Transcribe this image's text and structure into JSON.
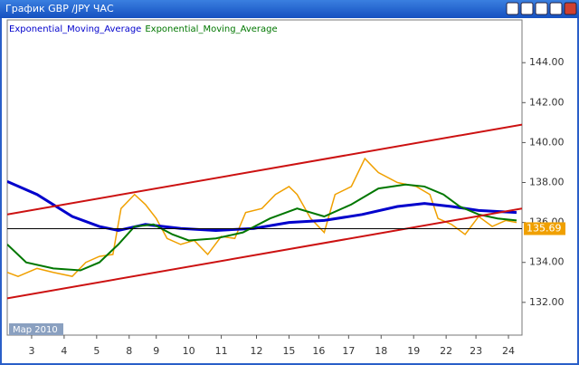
{
  "chart_data": {
    "type": "line",
    "title": "График GBP /JPY ЧАС",
    "date_label": "Мар 2010",
    "xlim": [
      0,
      190
    ],
    "xticks": [
      {
        "value": 9,
        "label": "3"
      },
      {
        "value": 21,
        "label": "4"
      },
      {
        "value": 33,
        "label": "5"
      },
      {
        "value": 45,
        "label": "8"
      },
      {
        "value": 55,
        "label": "9"
      },
      {
        "value": 67,
        "label": "10"
      },
      {
        "value": 79,
        "label": "11"
      },
      {
        "value": 92,
        "label": "12"
      },
      {
        "value": 104,
        "label": "15"
      },
      {
        "value": 115,
        "label": "16"
      },
      {
        "value": 126,
        "label": "17"
      },
      {
        "value": 138,
        "label": "18"
      },
      {
        "value": 150,
        "label": "19"
      },
      {
        "value": 162,
        "label": "22"
      },
      {
        "value": 173,
        "label": "23"
      },
      {
        "value": 185,
        "label": "24"
      }
    ],
    "ylim": [
      130.36,
      146.14
    ],
    "yticks": [
      {
        "value": 132,
        "label": "132.00"
      },
      {
        "value": 134,
        "label": "134.00"
      },
      {
        "value": 136,
        "label": "136.00"
      },
      {
        "value": 138,
        "label": "138.00"
      },
      {
        "value": 140,
        "label": "140.00"
      },
      {
        "value": 142,
        "label": "142.00"
      },
      {
        "value": 144,
        "label": "144.00"
      }
    ],
    "current_price": 135.69,
    "series": [
      {
        "color": "#f0a000",
        "x": [
          0,
          4,
          11,
          17,
          24,
          29,
          34,
          39,
          42,
          47,
          51,
          55,
          59,
          64,
          69,
          74,
          79,
          84,
          88,
          94,
          99,
          104,
          107,
          112,
          117,
          121,
          127,
          132,
          137,
          144,
          151,
          156,
          159,
          164,
          169,
          174,
          179,
          184,
          188
        ],
        "values": [
          133.5,
          133.3,
          133.7,
          133.5,
          133.3,
          134.0,
          134.3,
          134.4,
          136.7,
          137.4,
          136.9,
          136.2,
          135.2,
          134.9,
          135.1,
          134.4,
          135.3,
          135.2,
          136.5,
          136.7,
          137.4,
          137.8,
          137.4,
          136.2,
          135.5,
          137.4,
          137.8,
          139.2,
          138.5,
          138.0,
          137.8,
          137.4,
          136.2,
          135.9,
          135.4,
          136.3,
          135.8,
          136.1,
          136.0
        ]
      },
      {
        "name": "Exponential_Moving_Average",
        "color": "#0000cc",
        "x": [
          0,
          11,
          24,
          34,
          41,
          51,
          64,
          77,
          91,
          104,
          117,
          131,
          144,
          154,
          164,
          174,
          188
        ],
        "values": [
          138.05,
          137.4,
          136.3,
          135.8,
          135.6,
          135.9,
          135.7,
          135.6,
          135.7,
          136.0,
          136.1,
          136.4,
          136.8,
          136.95,
          136.8,
          136.6,
          136.5
        ]
      },
      {
        "name": "Exponential_Moving_Average",
        "color": "#007700",
        "x": [
          0,
          7,
          17,
          27,
          34,
          41,
          47,
          54,
          61,
          67,
          77,
          87,
          97,
          107,
          117,
          127,
          137,
          147,
          154,
          161,
          167,
          174,
          181,
          188
        ],
        "values": [
          134.9,
          134.0,
          133.7,
          133.6,
          134.0,
          134.9,
          135.8,
          135.9,
          135.4,
          135.1,
          135.2,
          135.5,
          136.2,
          136.7,
          136.3,
          136.9,
          137.7,
          137.9,
          137.8,
          137.4,
          136.8,
          136.4,
          136.2,
          136.1
        ]
      },
      {
        "color": "#cc1111",
        "x": [
          0,
          190
        ],
        "values": [
          136.4,
          140.9
        ]
      },
      {
        "color": "#cc1111",
        "x": [
          0,
          190
        ],
        "values": [
          132.2,
          136.7
        ]
      }
    ]
  }
}
